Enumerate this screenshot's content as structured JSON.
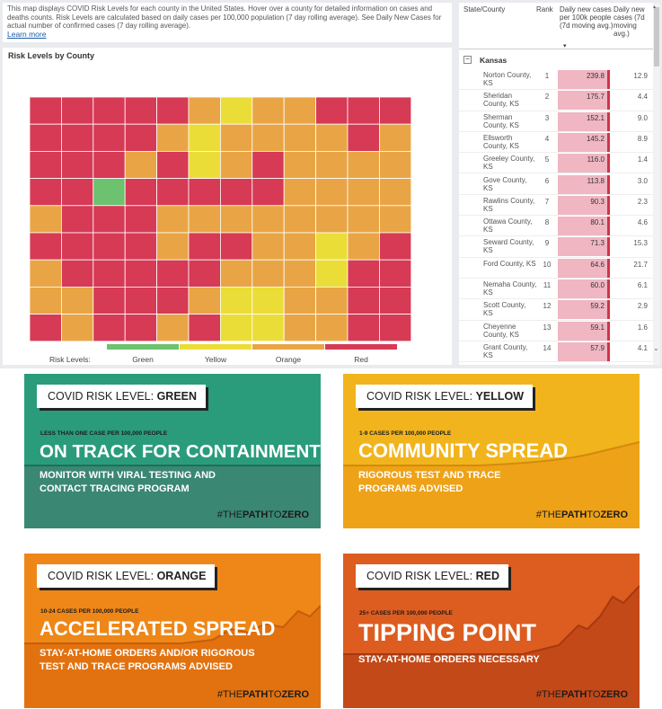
{
  "info": {
    "text": "This map displays COVID Risk Levels for each county in the United States. Hover over a county for detailed information on cases and deaths counts. Risk Levels are calculated based on daily cases per 100,000 population (7 day rolling average). See Daily New Cases for actual number of confirmed cases (7 day rolling average).",
    "learn_more": "Learn more"
  },
  "map": {
    "title": "Risk Levels by County",
    "legend_title": "Risk Levels:",
    "levels": [
      {
        "label": "Green",
        "color": "#6cc26e"
      },
      {
        "label": "Yellow",
        "color": "#ebdd37"
      },
      {
        "label": "Orange",
        "color": "#e9a545"
      },
      {
        "label": "Red",
        "color": "#d63a55"
      }
    ]
  },
  "table": {
    "headers": {
      "state": "State/County",
      "rank": "Rank",
      "rate": "Daily new cases per 100k people (7d moving avg.)",
      "count": "Daily new cases (7d moving avg.)"
    },
    "group": "Kansas",
    "rows": [
      {
        "county": "Norton County, KS",
        "rank": "1",
        "rate": "239.8",
        "cases": "12.9"
      },
      {
        "county": "Sheridan County, KS",
        "rank": "2",
        "rate": "175.7",
        "cases": "4.4"
      },
      {
        "county": "Sherman County, KS",
        "rank": "3",
        "rate": "152.1",
        "cases": "9.0"
      },
      {
        "county": "Ellsworth County, KS",
        "rank": "4",
        "rate": "145.2",
        "cases": "8.9"
      },
      {
        "county": "Greeley County, KS",
        "rank": "5",
        "rate": "116.0",
        "cases": "1.4"
      },
      {
        "county": "Gove County, KS",
        "rank": "6",
        "rate": "113.8",
        "cases": "3.0"
      },
      {
        "county": "Rawlins County, KS",
        "rank": "7",
        "rate": "90.3",
        "cases": "2.3"
      },
      {
        "county": "Ottawa County, KS",
        "rank": "8",
        "rate": "80.1",
        "cases": "4.6"
      },
      {
        "county": "Seward County, KS",
        "rank": "9",
        "rate": "71.3",
        "cases": "15.3"
      },
      {
        "county": "Ford County, KS",
        "rank": "10",
        "rate": "64.6",
        "cases": "21.7"
      },
      {
        "county": "Nemaha County, KS",
        "rank": "11",
        "rate": "60.0",
        "cases": "6.1"
      },
      {
        "county": "Scott County, KS",
        "rank": "12",
        "rate": "59.2",
        "cases": "2.9"
      },
      {
        "county": "Cheyenne County, KS",
        "rank": "13",
        "rate": "59.1",
        "cases": "1.6"
      },
      {
        "county": "Grant County, KS",
        "rank": "14",
        "rate": "57.9",
        "cases": "4.1"
      }
    ]
  },
  "cards": {
    "level_prefix": "COVID RISK LEVEL: ",
    "hashtag_pre": "#THE",
    "hashtag_bold": "PATH",
    "hashtag_mid": "TO",
    "hashtag_end": "ZERO",
    "green": {
      "level": "GREEN",
      "small": "LESS THAN ONE CASE PER 100,000 PEOPLE",
      "big": "ON TRACK FOR CONTAINMENT",
      "sub1": "MONITOR WITH VIRAL TESTING AND",
      "sub2": "CONTACT TRACING PROGRAM",
      "color": "#2a9c7c"
    },
    "yellow": {
      "level": "YELLOW",
      "small": "1-9 CASES PER 100,000 PEOPLE",
      "big": "COMMUNITY SPREAD",
      "sub1": "RIGOROUS TEST AND TRACE",
      "sub2": "PROGRAMS ADVISED",
      "color": "#f2b41c"
    },
    "orange": {
      "level": "ORANGE",
      "small": "10-24 CASES PER 100,000 PEOPLE",
      "big": "ACCELERATED SPREAD",
      "sub1": "STAY-AT-HOME ORDERS AND/OR RIGOROUS",
      "sub2": "TEST AND TRACE PROGRAMS ADVISED",
      "color": "#ee8718"
    },
    "red": {
      "level": "RED",
      "small": "25+ CASES PER 100,000 PEOPLE",
      "big": "TIPPING POINT",
      "sub1": "STAY-AT-HOME ORDERS NECESSARY",
      "sub2": "",
      "color": "#dc5d1f"
    }
  }
}
